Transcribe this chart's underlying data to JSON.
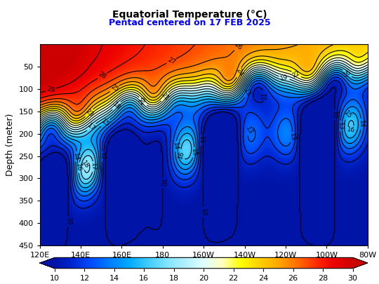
{
  "title": "Equatorial Temperature (°C)",
  "subtitle": "Pentad centered on 17 FEB 2025",
  "subtitle_color": "blue",
  "ylabel": "Depth (meter)",
  "lon_ticks": [
    120,
    140,
    160,
    180,
    200,
    220,
    240,
    260,
    280
  ],
  "lon_labels": [
    "120E",
    "140E",
    "160E",
    "180",
    "160W",
    "140W",
    "120W",
    "100W",
    "80W"
  ],
  "depth_ticks": [
    50,
    100,
    150,
    200,
    250,
    300,
    350,
    400,
    450
  ],
  "temp_min": 10,
  "temp_max": 30,
  "contour_levels": [
    10,
    11,
    12,
    13,
    14,
    15,
    16,
    17,
    18,
    19,
    20,
    21,
    22,
    23,
    24,
    25,
    26,
    27,
    28,
    29,
    30
  ],
  "cmap_colors": [
    "#0014a8",
    "#0028d4",
    "#0050ff",
    "#0080ff",
    "#00aaff",
    "#40ccff",
    "#80e4ff",
    "#b0f0ff",
    "#dfffff",
    "#ffffc0",
    "#ffff00",
    "#ffd000",
    "#ffaa00",
    "#ff7000",
    "#ff3000",
    "#ee0000",
    "#cc0000"
  ]
}
